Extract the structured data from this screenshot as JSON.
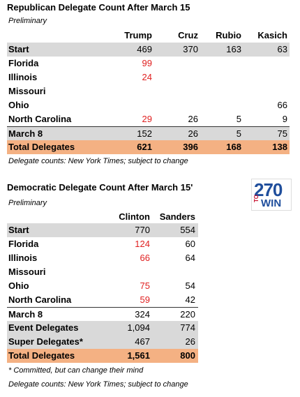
{
  "republican": {
    "title": "Republican Delegate Count After March 15",
    "subtitle": "Preliminary",
    "columns": [
      "Trump",
      "Cruz",
      "Rubio",
      "Kasich"
    ],
    "rows": [
      {
        "label": "Start",
        "values": [
          "469",
          "370",
          "163",
          "63"
        ]
      },
      {
        "label": "Florida",
        "values": [
          "99",
          null,
          null,
          null
        ]
      },
      {
        "label": "Illinois",
        "values": [
          "24",
          null,
          null,
          null
        ]
      },
      {
        "label": "Missouri",
        "values": [
          null,
          null,
          null,
          null
        ]
      },
      {
        "label": "Ohio",
        "values": [
          null,
          null,
          null,
          "66"
        ]
      },
      {
        "label": "North Carolina",
        "values": [
          "29",
          "26",
          "5",
          "9"
        ]
      },
      {
        "label": "March 8",
        "values": [
          "152",
          "26",
          "5",
          "75"
        ]
      },
      {
        "label": "Total Delegates",
        "values": [
          "621",
          "396",
          "168",
          "138"
        ]
      }
    ],
    "source": "Delegate counts: New York Times; subject to change"
  },
  "democratic": {
    "title": "Democratic Delegate Count After March 15'",
    "subtitle": "Preliminary",
    "columns": [
      "Clinton",
      "Sanders"
    ],
    "rows": [
      {
        "label": "Start",
        "values": [
          "770",
          "554"
        ]
      },
      {
        "label": "Florida",
        "values": [
          "124",
          "60"
        ]
      },
      {
        "label": "Illinois",
        "values": [
          "66",
          "64"
        ]
      },
      {
        "label": "Missouri",
        "values": [
          null,
          null
        ]
      },
      {
        "label": "Ohio",
        "values": [
          "75",
          "54"
        ]
      },
      {
        "label": "North Carolina",
        "values": [
          "59",
          "42"
        ]
      },
      {
        "label": "March 8",
        "values": [
          "324",
          "220"
        ]
      },
      {
        "label": "Event Delegates",
        "values": [
          "1,094",
          "774"
        ]
      },
      {
        "label": "Super Delegates*",
        "values": [
          "467",
          "26"
        ]
      },
      {
        "label": "Total Delegates",
        "values": [
          "1,561",
          "800"
        ]
      }
    ],
    "footnote": "* Committed, but can change their mind",
    "source": "Delegate counts: New York Times; subject to change"
  },
  "logo": {
    "number": "270",
    "to": "TO",
    "win": "WIN"
  }
}
